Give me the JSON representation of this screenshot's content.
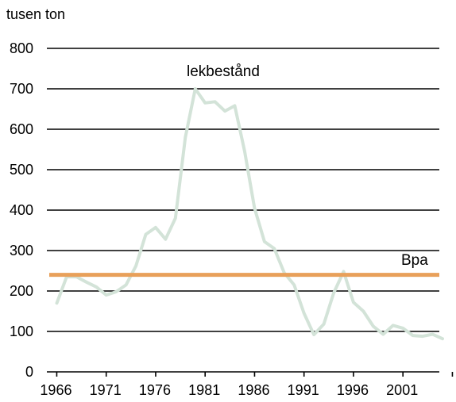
{
  "chart_data": {
    "type": "line",
    "unit_label": "tusen ton",
    "ylim": [
      0,
      800
    ],
    "y_ticks": [
      0,
      100,
      200,
      300,
      400,
      500,
      600,
      700,
      800
    ],
    "xlim": [
      1966,
      2004
    ],
    "x_tick_labels": [
      "1966",
      "1971",
      "1976",
      "1981",
      "1986",
      "1991",
      "1996",
      "2001"
    ],
    "grid": true,
    "series": [
      {
        "name": "lekbestånd",
        "color": "#d3e3d8",
        "x": [
          1966,
          1967,
          1968,
          1969,
          1970,
          1971,
          1972,
          1973,
          1974,
          1975,
          1976,
          1977,
          1978,
          1979,
          1980,
          1981,
          1982,
          1983,
          1984,
          1985,
          1986,
          1987,
          1988,
          1989,
          1990,
          1991,
          1992,
          1993,
          1994,
          1995,
          1996,
          1997,
          1998,
          1999,
          2000,
          2001,
          2002,
          2003,
          2004,
          2005
        ],
        "values": [
          170,
          235,
          235,
          222,
          210,
          190,
          198,
          215,
          262,
          340,
          357,
          328,
          380,
          580,
          700,
          665,
          668,
          645,
          658,
          545,
          405,
          322,
          305,
          245,
          215,
          145,
          92,
          118,
          195,
          248,
          172,
          150,
          113,
          93,
          115,
          108,
          90,
          88,
          93,
          82
        ]
      }
    ],
    "reference_lines": [
      {
        "name": "Bpa",
        "value": 240,
        "color": "#e8a05a"
      }
    ]
  }
}
